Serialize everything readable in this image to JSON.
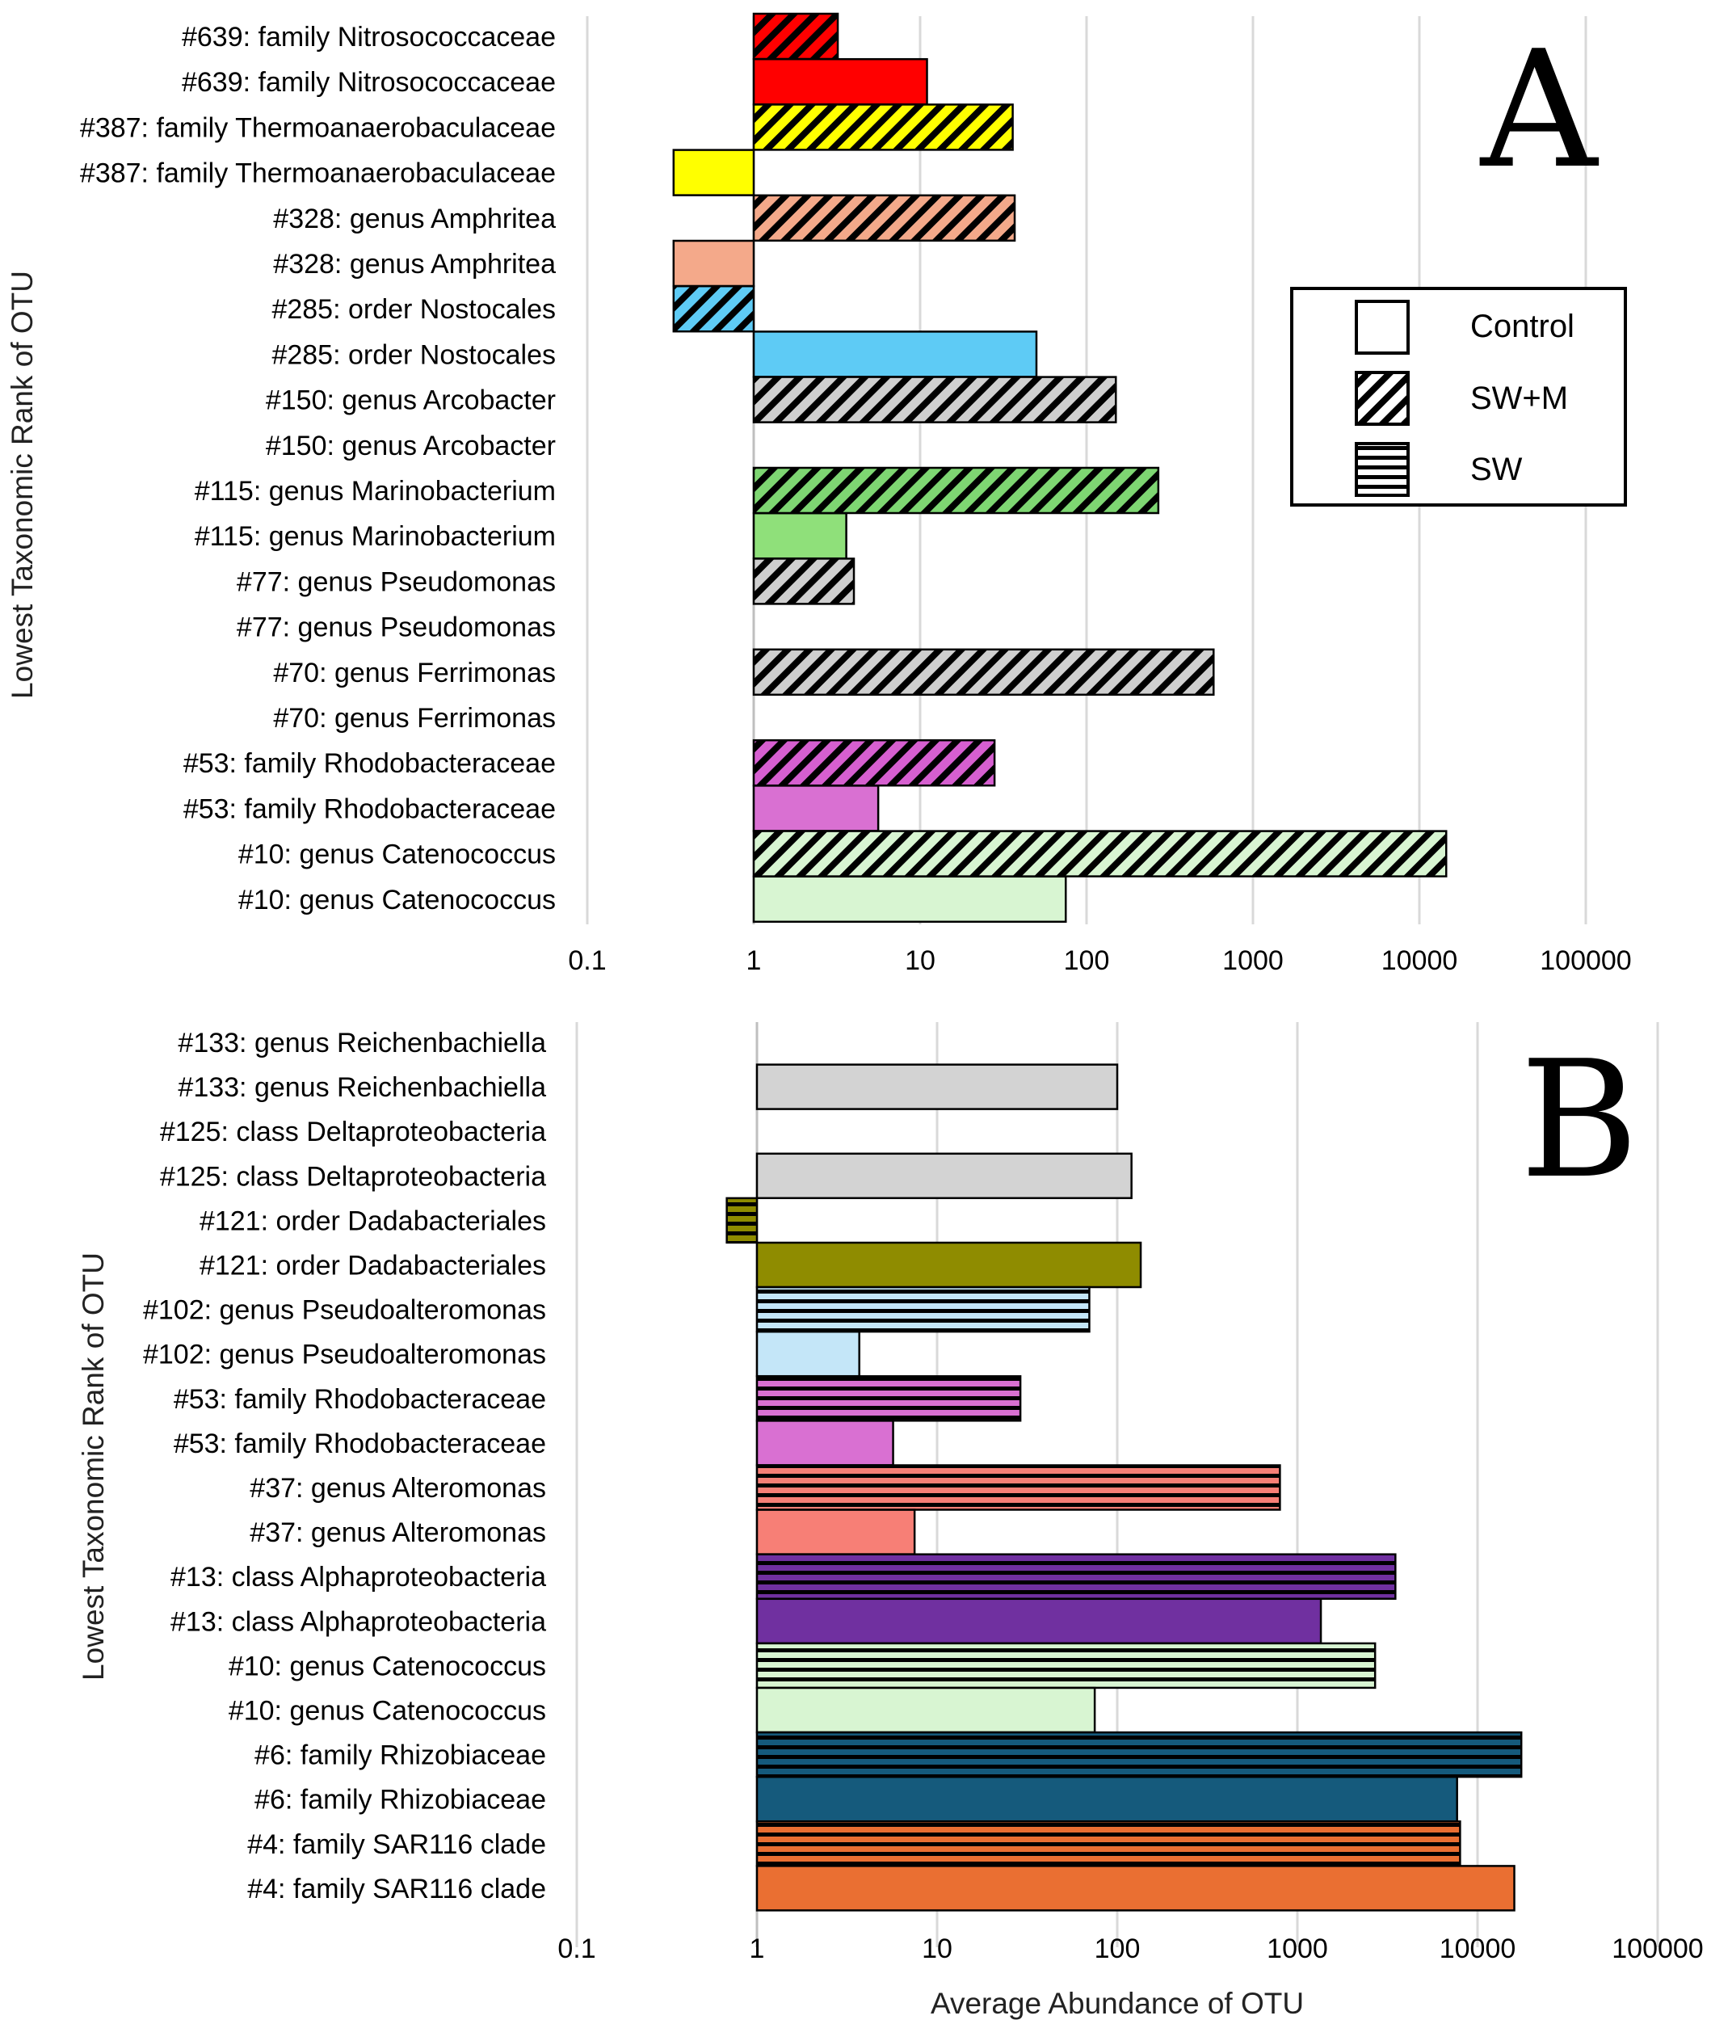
{
  "legend": {
    "items": [
      {
        "label": "Control",
        "pattern": "solid"
      },
      {
        "label": "SW+M",
        "pattern": "diagonal"
      },
      {
        "label": "SW",
        "pattern": "horizontal"
      }
    ]
  },
  "chart_data": [
    {
      "type": "bar",
      "orientation": "horizontal",
      "panel_label": "A",
      "xscale": "log",
      "xlim": [
        0.1,
        100000
      ],
      "baseline": 1,
      "x_ticks": [
        "0.1",
        "1",
        "10",
        "100",
        "1000",
        "10000",
        "100000"
      ],
      "ylabel": "Lowest Taxonomic Rank of OTU",
      "xlabel": "",
      "grid": true,
      "bars": [
        {
          "label": "#639: family Nitrosococcaceae",
          "value": 3.2,
          "color": "#ff0000",
          "pattern": "diagonal"
        },
        {
          "label": "#639: family Nitrosococcaceae",
          "value": 11,
          "color": "#ff0000",
          "pattern": "solid"
        },
        {
          "label": "#387: family Thermoanaerobaculaceae",
          "value": 36,
          "color": "#ffff00",
          "pattern": "diagonal"
        },
        {
          "label": "#387: family Thermoanaerobaculaceae",
          "value": 0.33,
          "color": "#ffff00",
          "pattern": "solid"
        },
        {
          "label": "#328: genus Amphritea",
          "value": 37,
          "color": "#f4a98a",
          "pattern": "diagonal"
        },
        {
          "label": "#328: genus Amphritea",
          "value": 0.33,
          "color": "#f4a98a",
          "pattern": "solid"
        },
        {
          "label": "#285: order Nostocales",
          "value": 0.33,
          "color": "#5ecbf5",
          "pattern": "diagonal"
        },
        {
          "label": "#285: order Nostocales",
          "value": 50,
          "color": "#5ecbf5",
          "pattern": "solid"
        },
        {
          "label": "#150: genus Arcobacter",
          "value": 150,
          "color": "#cfcfcf",
          "pattern": "diagonal"
        },
        {
          "label": "#150: genus Arcobacter",
          "value": null,
          "color": "#cfcfcf",
          "pattern": "solid"
        },
        {
          "label": "#115: genus Marinobacterium",
          "value": 270,
          "color": "#7ed672",
          "pattern": "diagonal"
        },
        {
          "label": "#115: genus Marinobacterium",
          "value": 3.6,
          "color": "#8fe07a",
          "pattern": "solid"
        },
        {
          "label": "#77: genus Pseudomonas",
          "value": 4,
          "color": "#cfcfcf",
          "pattern": "diagonal"
        },
        {
          "label": "#77: genus Pseudomonas",
          "value": null,
          "color": "#cfcfcf",
          "pattern": "solid"
        },
        {
          "label": "#70: genus Ferrimonas",
          "value": 580,
          "color": "#cfcfcf",
          "pattern": "diagonal"
        },
        {
          "label": "#70: genus Ferrimonas",
          "value": null,
          "color": "#cfcfcf",
          "pattern": "solid"
        },
        {
          "label": "#53: family Rhodobacteraceae",
          "value": 28,
          "color": "#d65fd0",
          "pattern": "diagonal"
        },
        {
          "label": "#53: family Rhodobacteraceae",
          "value": 5.6,
          "color": "#d970d2",
          "pattern": "solid"
        },
        {
          "label": "#10: genus Catenococcus",
          "value": 14500,
          "color": "#d8f5d2",
          "pattern": "diagonal"
        },
        {
          "label": "#10: genus Catenococcus",
          "value": 75,
          "color": "#d8f5d2",
          "pattern": "solid"
        }
      ]
    },
    {
      "type": "bar",
      "orientation": "horizontal",
      "panel_label": "B",
      "xscale": "log",
      "xlim": [
        0.1,
        100000
      ],
      "baseline": 1,
      "x_ticks": [
        "0.1",
        "1",
        "10",
        "100",
        "1000",
        "10000",
        "100000"
      ],
      "ylabel": "Lowest Taxonomic Rank of OTU",
      "xlabel": "Average Abundance of OTU",
      "grid": true,
      "bars": [
        {
          "label": "#133: genus Reichenbachiella",
          "value": null,
          "color": "#d3d3d3",
          "pattern": "horizontal"
        },
        {
          "label": "#133: genus Reichenbachiella",
          "value": 100,
          "color": "#d3d3d3",
          "pattern": "solid"
        },
        {
          "label": "#125: class Deltaproteobacteria",
          "value": null,
          "color": "#d3d3d3",
          "pattern": "horizontal"
        },
        {
          "label": "#125: class Deltaproteobacteria",
          "value": 120,
          "color": "#d3d3d3",
          "pattern": "solid"
        },
        {
          "label": "#121: order Dadabacteriales",
          "value": 0.68,
          "color": "#8f8c00",
          "pattern": "horizontal"
        },
        {
          "label": "#121: order Dadabacteriales",
          "value": 135,
          "color": "#8f8c00",
          "pattern": "solid"
        },
        {
          "label": "#102: genus Pseudoalteromonas",
          "value": 70,
          "color": "#c4e6f8",
          "pattern": "horizontal"
        },
        {
          "label": "#102: genus Pseudoalteromonas",
          "value": 3.7,
          "color": "#c4e6f8",
          "pattern": "solid"
        },
        {
          "label": "#53: family Rhodobacteraceae",
          "value": 29,
          "color": "#d970d2",
          "pattern": "horizontal"
        },
        {
          "label": "#53: family Rhodobacteraceae",
          "value": 5.7,
          "color": "#d970d2",
          "pattern": "solid"
        },
        {
          "label": "#37: genus Alteromonas",
          "value": 800,
          "color": "#f77f76",
          "pattern": "horizontal"
        },
        {
          "label": "#37: genus Alteromonas",
          "value": 7.5,
          "color": "#f77f76",
          "pattern": "solid"
        },
        {
          "label": "#13: class Alphaproteobacteria",
          "value": 3500,
          "color": "#7030a0",
          "pattern": "horizontal"
        },
        {
          "label": "#13: class Alphaproteobacteria",
          "value": 1350,
          "color": "#7030a0",
          "pattern": "solid"
        },
        {
          "label": "#10: genus Catenococcus",
          "value": 2700,
          "color": "#d8f5d2",
          "pattern": "horizontal"
        },
        {
          "label": "#10: genus Catenococcus",
          "value": 75,
          "color": "#d8f5d2",
          "pattern": "solid"
        },
        {
          "label": "#6: family Rhizobiaceae",
          "value": 17500,
          "color": "#155a7c",
          "pattern": "horizontal"
        },
        {
          "label": "#6: family Rhizobiaceae",
          "value": 7700,
          "color": "#155a7c",
          "pattern": "solid"
        },
        {
          "label": "#4: family SAR116 clade",
          "value": 8000,
          "color": "#ea6f32",
          "pattern": "horizontal"
        },
        {
          "label": "#4: family SAR116 clade",
          "value": 16000,
          "color": "#ea6f32",
          "pattern": "solid"
        }
      ]
    }
  ]
}
